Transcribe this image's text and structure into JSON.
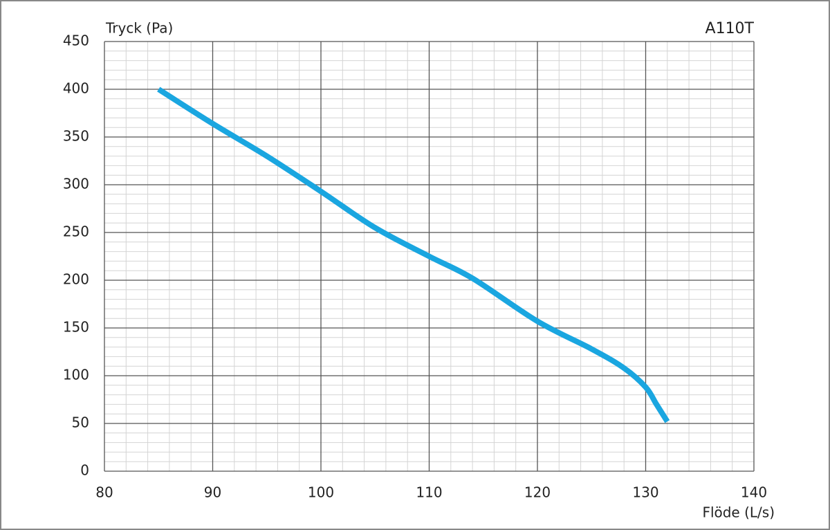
{
  "chart_data": {
    "type": "line",
    "title": "A110T",
    "ylabel": "Tryck (Pa)",
    "xlabel": "Flöde (L/s)",
    "x": [
      85,
      90,
      95,
      100,
      105,
      110,
      114,
      120,
      125,
      128,
      130,
      131,
      132
    ],
    "series": [
      {
        "color": "#1aa6e0",
        "values": [
          400,
          364,
          330,
          293,
          255,
          225,
          202,
          157,
          128,
          108,
          88,
          70,
          52
        ]
      }
    ],
    "xlim": [
      80,
      140
    ],
    "xticks": [
      80,
      90,
      100,
      110,
      120,
      130,
      140
    ],
    "ylim": [
      0,
      450
    ],
    "yticks": [
      0,
      50,
      100,
      150,
      200,
      250,
      300,
      350,
      400,
      450
    ],
    "grid": true,
    "minor_xstep": 2,
    "minor_ystep": 10
  }
}
